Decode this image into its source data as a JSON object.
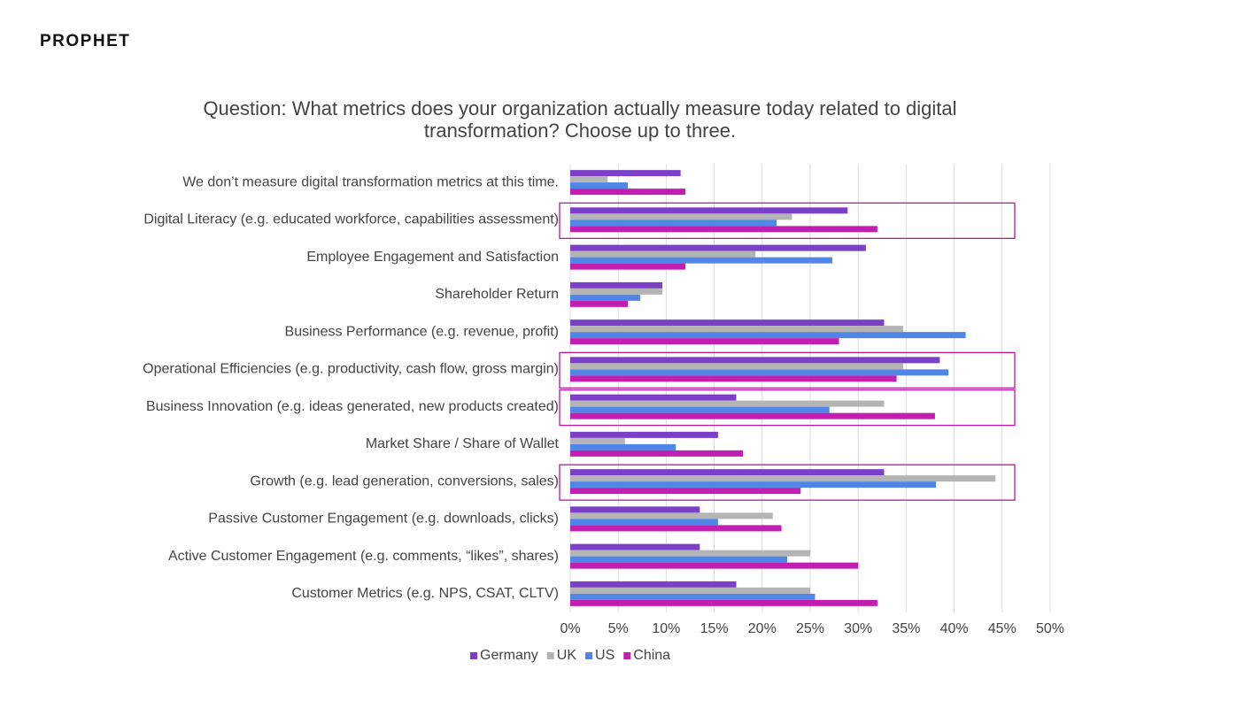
{
  "logo": "PROPHET",
  "chart_data": {
    "type": "barh",
    "title": "Question: What metrics does your organization actually measure today related to digital transformation? Choose up to three.",
    "categories": [
      "We don’t measure digital transformation metrics at this time.",
      "Digital Literacy (e.g. educated workforce, capabilities assessment)",
      "Employee Engagement and Satisfaction",
      "Shareholder Return",
      "Business Performance (e.g. revenue, profit)",
      "Operational Efficiencies (e.g. productivity, cash flow, gross margin)",
      "Business Innovation (e.g. ideas generated, new products created)",
      "Market Share / Share of Wallet",
      "Growth (e.g. lead generation, conversions, sales)",
      "Passive Customer Engagement (e.g. downloads, clicks)",
      "Active Customer Engagement (e.g. comments, “likes”, shares)",
      "Customer Metrics (e.g. NPS, CSAT, CLTV)"
    ],
    "series": [
      {
        "name": "Germany",
        "color": "#7b3fc8",
        "values": [
          11.5,
          28.9,
          30.8,
          9.6,
          32.7,
          38.5,
          17.3,
          15.4,
          32.7,
          13.5,
          13.5,
          17.3
        ]
      },
      {
        "name": "UK",
        "color": "#b4b4b4",
        "values": [
          3.9,
          23.1,
          19.3,
          9.6,
          34.7,
          34.7,
          32.7,
          5.7,
          44.3,
          21.1,
          25.0,
          25.0
        ]
      },
      {
        "name": "US",
        "color": "#4f86e8",
        "values": [
          6.0,
          21.5,
          27.3,
          7.3,
          41.2,
          39.4,
          27.0,
          11.0,
          38.1,
          15.4,
          22.6,
          25.5
        ]
      },
      {
        "name": "China",
        "color": "#c21fb1",
        "values": [
          12.0,
          32.0,
          12.0,
          6.0,
          28.0,
          34.0,
          38.0,
          18.0,
          24.0,
          22.0,
          30.0,
          32.0
        ]
      }
    ],
    "xlim": [
      0,
      50
    ],
    "xticks": [
      {
        "value": 0,
        "label": "0%"
      },
      {
        "value": 5,
        "label": "5%"
      },
      {
        "value": 10,
        "label": "10%"
      },
      {
        "value": 15,
        "label": "15%"
      },
      {
        "value": 20,
        "label": "20%"
      },
      {
        "value": 25,
        "label": "25%"
      },
      {
        "value": 30,
        "label": "30%"
      },
      {
        "value": 35,
        "label": "35%"
      },
      {
        "value": 40,
        "label": "40%"
      },
      {
        "value": 45,
        "label": "45%"
      },
      {
        "value": 50,
        "label": "50%"
      }
    ],
    "grid": true,
    "legend": "bottom",
    "highlighted": [
      1,
      5,
      6,
      8
    ],
    "highlight_color": "#b5189e"
  }
}
